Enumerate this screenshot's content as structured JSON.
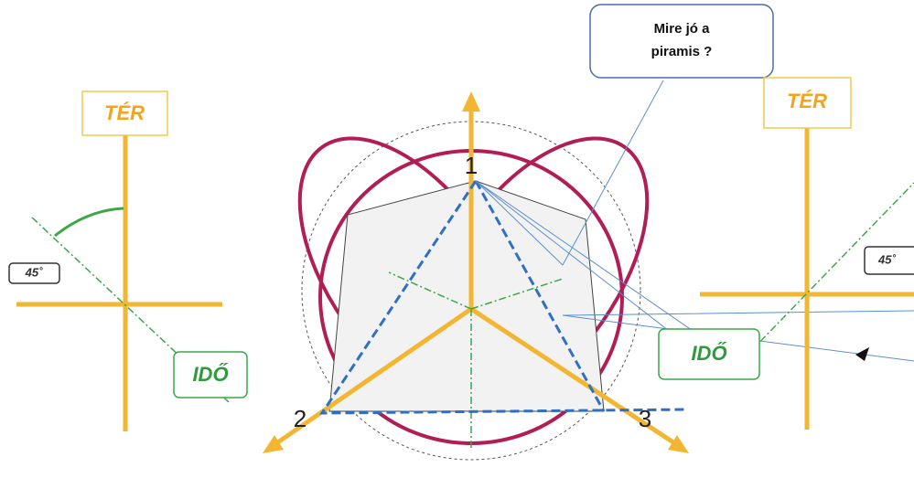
{
  "callout": {
    "lines": [
      "Mire jó a",
      "piramis ?"
    ]
  },
  "left": {
    "space": "TÉR",
    "angle": "45˚",
    "time": "IDŐ"
  },
  "right": {
    "space": "TÉR",
    "angle": "45˚",
    "time": "IDŐ"
  },
  "vertices": [
    "1",
    "2",
    "3"
  ]
}
